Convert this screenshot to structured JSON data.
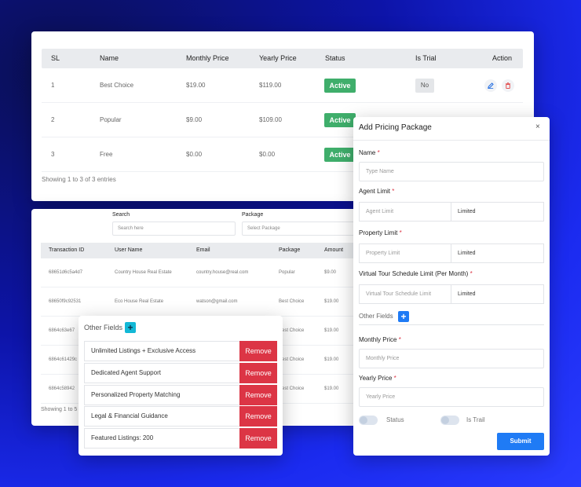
{
  "pricing_table": {
    "headers": [
      "SL",
      "Name",
      "Monthly Price",
      "Yearly Price",
      "Status",
      "Is Trial",
      "Action"
    ],
    "rows": [
      {
        "sl": "1",
        "name": "Best Choice",
        "monthly": "$19.00",
        "yearly": "$119.00",
        "status": "Active",
        "trial": "No"
      },
      {
        "sl": "2",
        "name": "Popular",
        "monthly": "$9.00",
        "yearly": "$109.00",
        "status": "Active"
      },
      {
        "sl": "3",
        "name": "Free",
        "monthly": "$0.00",
        "yearly": "$0.00",
        "status": "Active"
      }
    ],
    "footer": "Showing 1 to 3 of 3 entries"
  },
  "transactions": {
    "search_label": "Search",
    "search_placeholder": "Search here",
    "package_label": "Package",
    "package_placeholder": "Select Package",
    "headers": [
      "Transaction ID",
      "User Name",
      "Email",
      "Package",
      "Amount"
    ],
    "rows": [
      {
        "id": "68651d6c5a4d7",
        "user": "Country House Real Estate",
        "email": "country.house@real.com",
        "package": "Popular",
        "amount": "$9.00"
      },
      {
        "id": "68650f9c92531",
        "user": "Eco House Real Estate",
        "email": "watson@gmail.com",
        "package": "Best Choice",
        "amount": "$19.00"
      },
      {
        "id": "6864c63e67",
        "package": "Best Choice",
        "amount": "$19.00"
      },
      {
        "id": "6864c61429c",
        "package": "Best Choice",
        "amount": "$19.00"
      },
      {
        "id": "6864c58942",
        "package": "Best Choice",
        "amount": "$19.00"
      }
    ],
    "footer": "Showing 1 to 5"
  },
  "other_fields": {
    "title": "Other Fields",
    "plus": "+",
    "remove_label": "Remove",
    "items": [
      "Unlimited Listings + Exclusive Access",
      "Dedicated Agent Support",
      "Personalized Property Matching",
      "Legal & Financial Guidance",
      "Featured Listings: 200"
    ]
  },
  "modal": {
    "title": "Add Pricing Package",
    "close": "×",
    "req": "*",
    "name_label": "Name",
    "name_placeholder": "Type Name",
    "agent_label": "Agent Limit",
    "agent_placeholder": "Agent Limit",
    "agent_type": "Limited",
    "property_label": "Property Limit",
    "property_placeholder": "Property Limit",
    "property_type": "Limited",
    "tour_label": "Virtual Tour Schedule Limit (Per Month)",
    "tour_placeholder": "Virtual Tour Schedule Limit",
    "tour_type": "Limited",
    "other_fields_label": "Other Fields",
    "other_plus": "+",
    "monthly_label": "Monthly Price",
    "monthly_placeholder": "Monthly Price",
    "yearly_label": "Yearly Price",
    "yearly_placeholder": "Yearly Price",
    "status_label": "Status",
    "trial_label": "Is Trail",
    "submit": "Submit"
  },
  "icons": {
    "edit": "pencil-icon",
    "delete": "trash-icon"
  },
  "colors": {
    "accent": "#1f7bf5",
    "active": "#3fae6b",
    "remove": "#dc3545",
    "cyan": "#12b8d6"
  }
}
